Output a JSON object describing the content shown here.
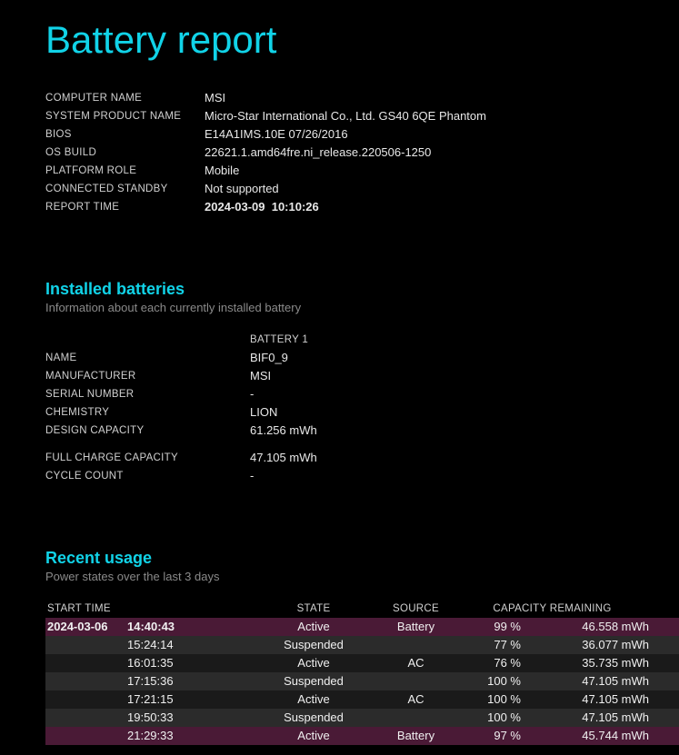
{
  "title": "Battery report",
  "colors": {
    "accent": "#11d3e8",
    "background": "#000000",
    "text": "#e8e8e8",
    "muted": "#8a8a8a",
    "row_dark": "#2b2b2b",
    "row_mid": "#1a1a1a",
    "row_highlight": "#4a1a36"
  },
  "sysinfo": [
    {
      "label": "COMPUTER NAME",
      "value": "MSI"
    },
    {
      "label": "SYSTEM PRODUCT NAME",
      "value": "Micro-Star International Co., Ltd. GS40 6QE Phantom"
    },
    {
      "label": "BIOS",
      "value": "E14A1IMS.10E 07/26/2016"
    },
    {
      "label": "OS BUILD",
      "value": "22621.1.amd64fre.ni_release.220506-1250"
    },
    {
      "label": "PLATFORM ROLE",
      "value": "Mobile"
    },
    {
      "label": "CONNECTED STANDBY",
      "value": "Not supported"
    },
    {
      "label": "REPORT TIME",
      "value": "2024-03-09  10:10:26",
      "bold": true
    }
  ],
  "batteries": {
    "heading": "Installed batteries",
    "sub": "Information about each currently installed battery",
    "col_header": "BATTERY 1",
    "rows1": [
      {
        "label": "NAME",
        "value": "BIF0_9"
      },
      {
        "label": "MANUFACTURER",
        "value": "MSI"
      },
      {
        "label": "SERIAL NUMBER",
        "value": "-"
      },
      {
        "label": "CHEMISTRY",
        "value": "LION"
      },
      {
        "label": "DESIGN CAPACITY",
        "value": "61.256 mWh"
      }
    ],
    "rows2": [
      {
        "label": "FULL CHARGE CAPACITY",
        "value": "47.105 mWh"
      },
      {
        "label": "CYCLE COUNT",
        "value": "-"
      }
    ]
  },
  "usage": {
    "heading": "Recent usage",
    "sub": "Power states over the last 3 days",
    "headers": {
      "start": "START TIME",
      "state": "STATE",
      "source": "SOURCE",
      "remaining": "CAPACITY REMAINING"
    },
    "rows": [
      {
        "date": "2024-03-06",
        "time": "14:40:43",
        "state": "Active",
        "source": "Battery",
        "pct": "99 %",
        "cap": "46.558 mWh",
        "hl": true,
        "bold": true
      },
      {
        "date": "",
        "time": "15:24:14",
        "state": "Suspended",
        "source": "",
        "pct": "77 %",
        "cap": "36.077 mWh",
        "hl": false,
        "bold": false
      },
      {
        "date": "",
        "time": "16:01:35",
        "state": "Active",
        "source": "AC",
        "pct": "76 %",
        "cap": "35.735 mWh",
        "hl": false,
        "bold": false
      },
      {
        "date": "",
        "time": "17:15:36",
        "state": "Suspended",
        "source": "",
        "pct": "100 %",
        "cap": "47.105 mWh",
        "hl": false,
        "bold": false
      },
      {
        "date": "",
        "time": "17:21:15",
        "state": "Active",
        "source": "AC",
        "pct": "100 %",
        "cap": "47.105 mWh",
        "hl": false,
        "bold": false
      },
      {
        "date": "",
        "time": "19:50:33",
        "state": "Suspended",
        "source": "",
        "pct": "100 %",
        "cap": "47.105 mWh",
        "hl": false,
        "bold": false
      },
      {
        "date": "",
        "time": "21:29:33",
        "state": "Active",
        "source": "Battery",
        "pct": "97 %",
        "cap": "45.744 mWh",
        "hl": true,
        "bold": false
      }
    ]
  }
}
